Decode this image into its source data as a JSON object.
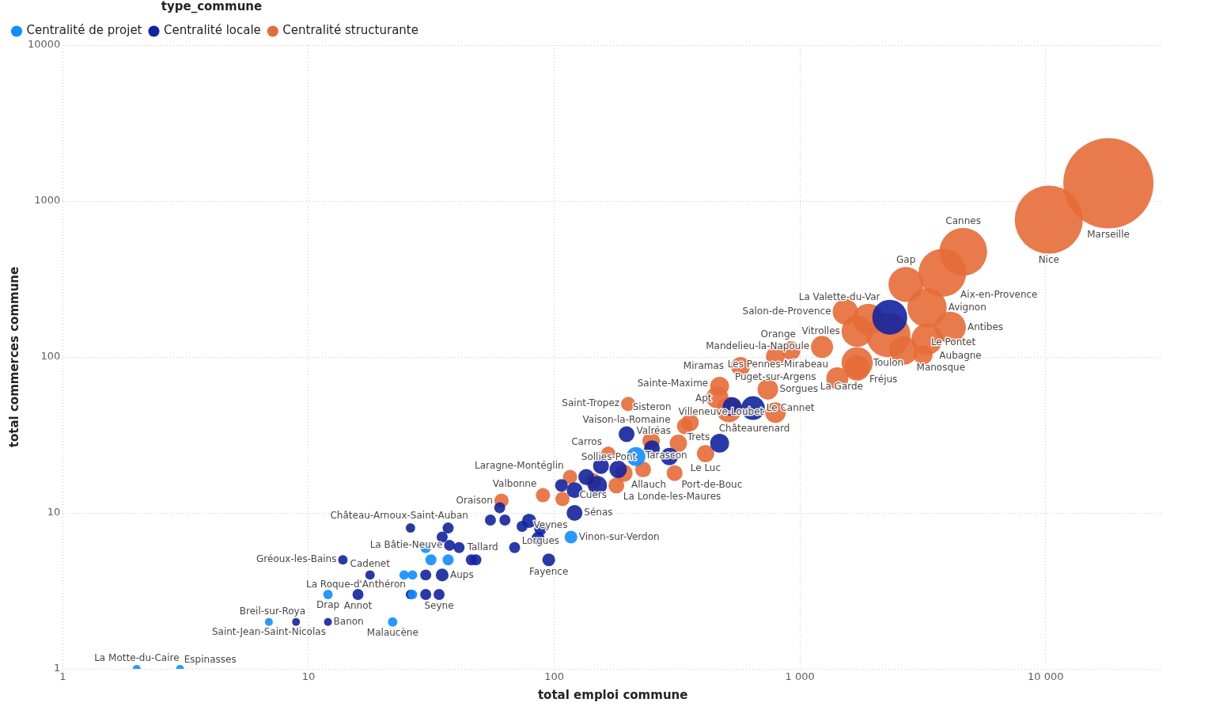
{
  "chart_data": {
    "type": "bubble",
    "xlabel": "total emploi commune",
    "ylabel": "total commerces commune",
    "legend_title": "type_commune",
    "legend": "top left",
    "log": "xy",
    "grid": true,
    "xlim": [
      1,
      30000
    ],
    "xticks": [
      1,
      10,
      100,
      {
        "value": 1000,
        "label": "1 000"
      },
      {
        "value": 10000,
        "label": "10 000"
      }
    ],
    "ylim": [
      1,
      10000
    ],
    "yticks": [
      1,
      10,
      100,
      1000,
      10000
    ],
    "series": [
      {
        "name": "Centralité de projet",
        "color": "#118dff",
        "x": [
          215,
          117,
          30,
          31.5,
          37,
          24.5,
          26.5,
          26.5,
          22,
          12,
          6.9,
          2,
          3
        ],
        "values": [
          23,
          7,
          6,
          5,
          5,
          4,
          4,
          3,
          2,
          3,
          2,
          1,
          1
        ],
        "sizes": [
          0.044,
          0.02,
          0.015,
          0.015,
          0.015,
          0.011,
          0.011,
          0.011,
          0.011,
          0.011,
          0.0077,
          0.0077,
          0.0077
        ],
        "value_labels": [
          null,
          "Vinon-sur-Verdon",
          null,
          null,
          null,
          null,
          null,
          null,
          "Malaucène",
          "Drap",
          "Saint-Jean-Saint-Nicolas",
          "La Motte-du-Caire",
          "Espinasses"
        ]
      },
      {
        "name": "Centralité locale",
        "color": "#12239e",
        "x": [
          2320,
          644,
          530,
          471,
          197,
          250,
          294,
          182,
          155,
          150,
          135,
          121,
          121,
          107,
          88,
          79,
          86,
          69,
          95,
          74,
          63,
          60,
          55,
          37,
          26,
          35,
          37.5,
          41,
          46,
          48,
          35,
          30,
          17.8,
          13.8,
          15.9,
          26,
          34,
          30,
          12,
          8.9
        ],
        "values": [
          180,
          47,
          48,
          28,
          32,
          26,
          23,
          19,
          20,
          15,
          17,
          14,
          10,
          15,
          7.9,
          8.9,
          6.9,
          6,
          5,
          8.2,
          9,
          10.8,
          9,
          8,
          8,
          7,
          6.2,
          6,
          5,
          5,
          4,
          4,
          4,
          5,
          3,
          3,
          3,
          3,
          2,
          2
        ],
        "sizes": [
          0.15,
          0.069,
          0.044,
          0.044,
          0.031,
          0.031,
          0.037,
          0.037,
          0.031,
          0.044,
          0.031,
          0.031,
          0.031,
          0.02,
          0.02,
          0.025,
          0.02,
          0.015,
          0.02,
          0.015,
          0.015,
          0.015,
          0.015,
          0.015,
          0.011,
          0.015,
          0.015,
          0.015,
          0.015,
          0.015,
          0.02,
          0.015,
          0.011,
          0.011,
          0.015,
          0.011,
          0.015,
          0.015,
          0.0077,
          0.0077
        ],
        "value_labels": [
          null,
          "Le Cannet",
          null,
          null,
          "Vaison-la-Romaine",
          null,
          null,
          null,
          null,
          null,
          null,
          null,
          "Sénas",
          null,
          "Lorgues",
          null,
          "Veynes",
          null,
          "Fayence",
          null,
          null,
          null,
          null,
          "Château-Arnoux-Saint-Auban",
          null,
          null,
          "La Bâtie-Neuve",
          null,
          "Tallard",
          null,
          "Aups",
          null,
          "Cadenet",
          "Gréoux-les-Bains",
          "Annot",
          "La Roque-d'Anthéron",
          "Seyne",
          null,
          "Banon",
          "Breil-sur-Roya"
        ]
      },
      {
        "name": "Centralité structurante",
        "color": "#e66c37",
        "x": [
          18000,
          10300,
          4620,
          3800,
          2700,
          3290,
          4090,
          2290,
          1530,
          1900,
          1710,
          1230,
          920,
          3290,
          2640,
          3170,
          1710,
          1710,
          1420,
          795,
          573,
          740,
          471,
          461,
          200,
          514,
          795,
          357,
          340,
          320,
          248,
          413,
          166,
          309,
          230,
          192,
          144,
          179,
          116,
          90,
          61,
          108
        ],
        "values": [
          1300,
          760,
          473,
          347,
          292,
          207,
          155,
          138,
          195,
          174,
          146,
          116,
          110,
          130,
          110,
          103,
          92,
          85,
          73,
          101,
          87,
          62,
          65,
          55,
          50,
          46,
          44,
          38,
          36,
          28,
          29,
          24,
          24,
          18,
          19,
          18,
          16,
          15,
          17,
          13,
          12,
          12.3
        ],
        "sizes": [
          1,
          0.57,
          0.28,
          0.28,
          0.15,
          0.19,
          0.12,
          0.24,
          0.079,
          0.12,
          0.12,
          0.06,
          0.044,
          0.12,
          0.1,
          0.044,
          0.12,
          0.079,
          0.06,
          0.044,
          0.044,
          0.052,
          0.044,
          0.06,
          0.025,
          0.079,
          0.052,
          0.037,
          0.031,
          0.037,
          0.037,
          0.037,
          0.025,
          0.031,
          0.031,
          0.037,
          0.031,
          0.031,
          0.025,
          0.025,
          0.025,
          0.025
        ],
        "value_labels": [
          "Marseille",
          "Nice",
          "Cannes",
          "Aix-en-Provence",
          "Gap",
          "Avignon",
          "Antibes",
          "Toulon",
          "Salon-de-Provence",
          "La Valette-du-Var",
          "Vitrolles",
          "Mandelieu-la-Napoule",
          "Orange",
          "Aubagne",
          "Manosque",
          "Le Pontet",
          "Fréjus",
          "La Garde",
          "Les Pennes-Mirabeau",
          "Puget-sur-Argens",
          "Miramas",
          "Sorgues",
          "Apt",
          "Sainte-Maxime",
          "Saint-Tropez",
          "Châteaurenard",
          "Villeneuve-Loubet",
          "Trets",
          "Sisteron",
          "Valréas",
          "Tarascon",
          "Le Luc",
          "Carros",
          "Port-de-Bouc",
          "Sollies-Pont",
          "Allauch",
          "Cuers",
          "La Londe-les-Maures",
          "Laragne-Montéglin",
          "Valbonne",
          "Oraison",
          null
        ]
      }
    ]
  }
}
